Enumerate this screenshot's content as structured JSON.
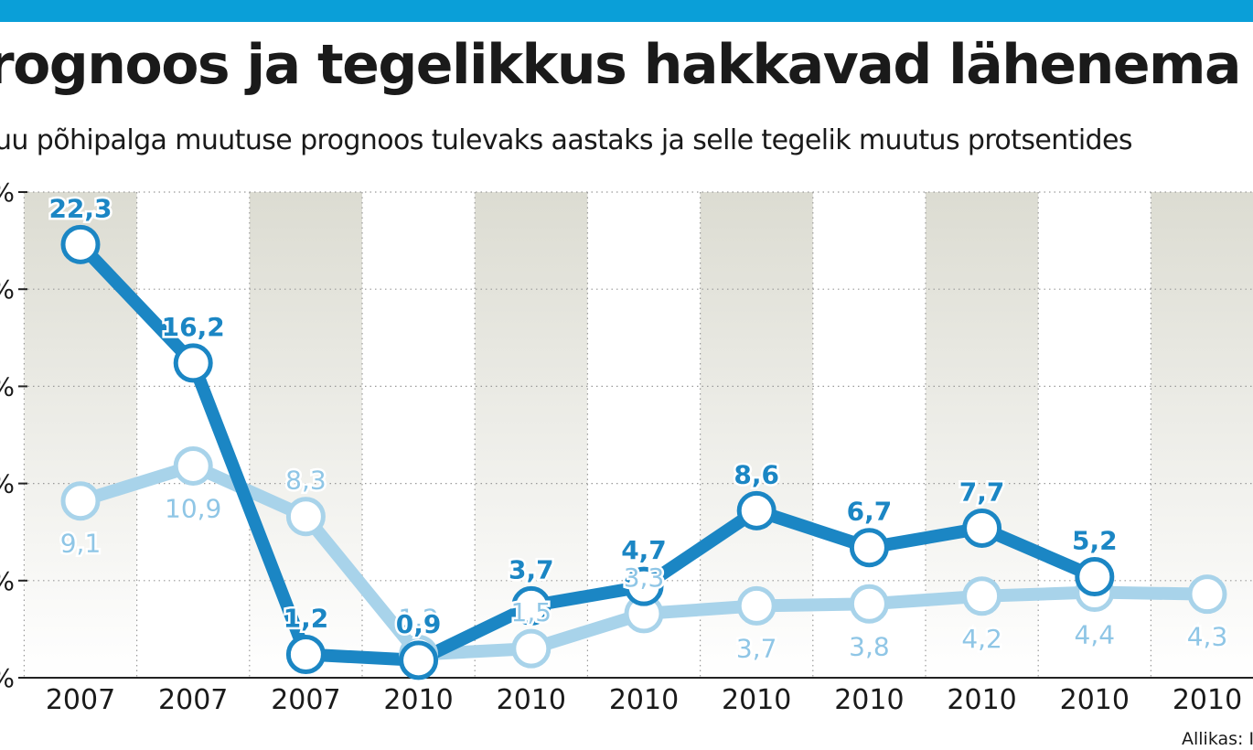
{
  "title": "rognoos ja tegelikkus hakkavad lähenema",
  "subtitle": "uu põhipalga muutuse prognoos tulevaks aastaks ja selle tegelik muutus protsentides",
  "source": "Allikas: I",
  "colors": {
    "accent_bar": "#0a9fd8",
    "dark_series": "#1b86c4",
    "light_series": "#a8d3ea",
    "light_label": "#8fc6e6"
  },
  "chart_data": {
    "type": "line",
    "categories": [
      "2007",
      "2007",
      "2007",
      "2010",
      "2010",
      "2010",
      "2010",
      "2010",
      "2010",
      "2010",
      "2010"
    ],
    "ylim": [
      0,
      25
    ],
    "y_ticks": [
      0,
      5,
      10,
      15,
      20,
      25
    ],
    "y_tick_labels": [
      "%",
      "%",
      "%",
      "%",
      "%",
      "%"
    ],
    "grid": true,
    "series": [
      {
        "style": "dark",
        "values": [
          22.3,
          16.2,
          1.2,
          0.9,
          3.7,
          4.7,
          8.6,
          6.7,
          7.7,
          5.2,
          null
        ],
        "labels": [
          "22,3",
          "16,2",
          "1,2",
          "0,9",
          "3,7",
          "4,7",
          "8,6",
          "6,7",
          "7,7",
          "5,2",
          ""
        ]
      },
      {
        "style": "light",
        "values": [
          9.1,
          10.9,
          8.3,
          1.2,
          1.5,
          3.3,
          3.7,
          3.8,
          4.2,
          4.4,
          4.3
        ],
        "labels": [
          "9,1",
          "10,9",
          "8,3",
          "1,2",
          "1,5",
          "3,3",
          "3,7",
          "3,8",
          "4,2",
          "4,4",
          "4,3"
        ]
      }
    ]
  }
}
